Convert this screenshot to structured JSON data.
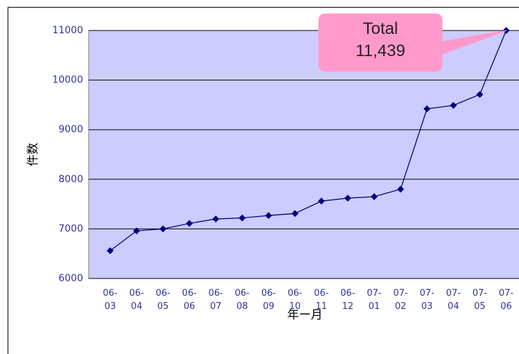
{
  "chart_data": {
    "type": "line",
    "categories": [
      "06-03",
      "06-04",
      "06-05",
      "06-06",
      "06-07",
      "06-08",
      "06-09",
      "06-10",
      "06-11",
      "06-12",
      "07-01",
      "07-02",
      "07-03",
      "07-04",
      "07-05",
      "07-06"
    ],
    "series": [
      {
        "name": "件数",
        "color": "#000080",
        "values": [
          6560,
          6960,
          7000,
          7110,
          7200,
          7220,
          7270,
          7310,
          7560,
          7620,
          7650,
          7800,
          9420,
          9490,
          9710,
          11000
        ]
      }
    ],
    "ylim": [
      6000,
      11000
    ],
    "yticks": [
      6000,
      7000,
      8000,
      9000,
      10000,
      11000
    ],
    "ylabel": "件数",
    "xlabel": "年ー月",
    "annotation": [
      "Total",
      "11,439"
    ],
    "grid": true,
    "plot_color": "#ccccff"
  }
}
